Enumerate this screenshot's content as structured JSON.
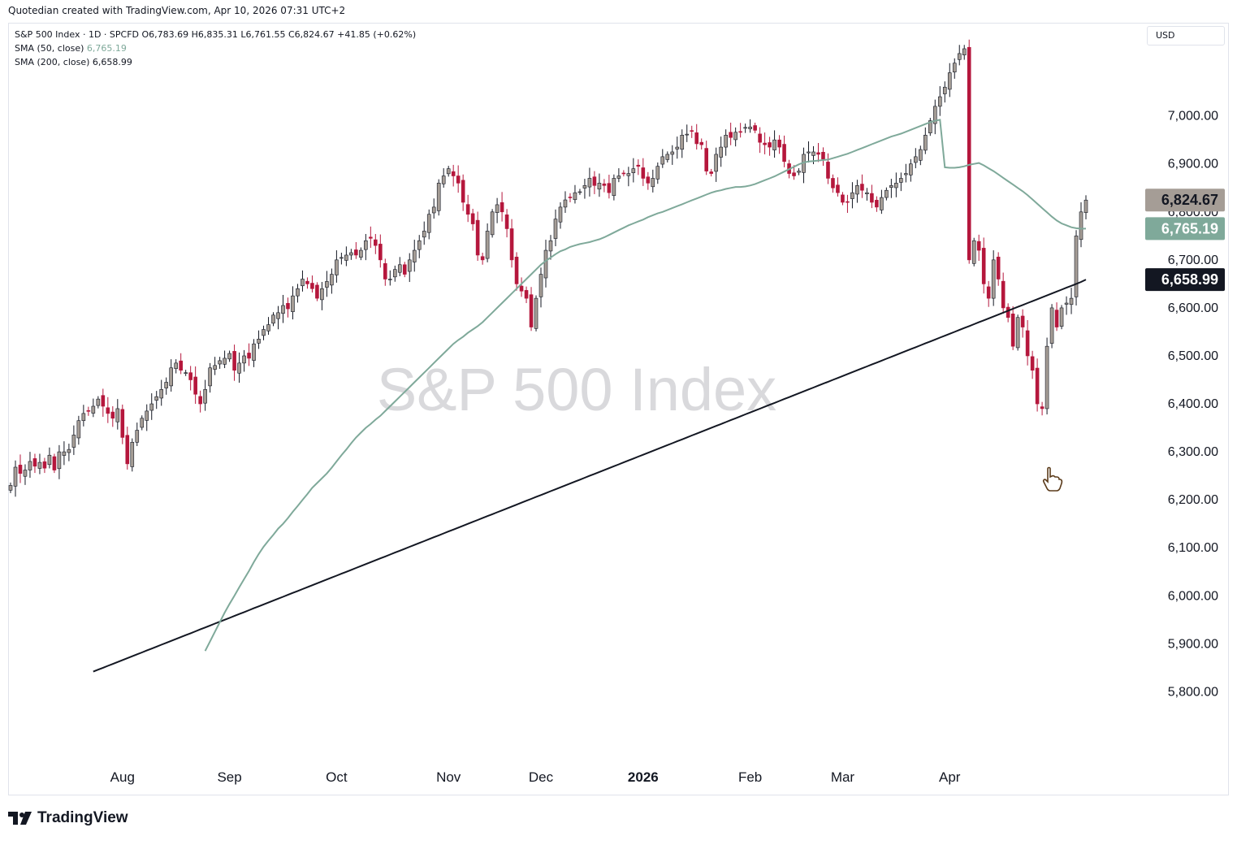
{
  "header": {
    "title": "Quotedian created with TradingView.com, Apr 10, 2026 07:31 UTC+2"
  },
  "legend": {
    "main": "S&P 500 Index · 1D · SPCFD  O6,783.69  H6,835.31  L6,761.55  C6,824.67  +41.85 (+0.62%)",
    "sma50_label": "SMA (50, close)",
    "sma50_value": "6,765.19",
    "sma200_label": "SMA (200, close)",
    "sma200_value": "6,658.99"
  },
  "currency": "USD",
  "footer": {
    "brand": "TradingView"
  },
  "colors": {
    "up": "#a59d96",
    "down": "#b5173c",
    "sma50": "#7fa99a",
    "sma200": "#131722",
    "badge_last": "#a59d96",
    "badge_sma50": "#7fa99a",
    "badge_sma200": "#131722"
  },
  "chart_data": {
    "type": "candlestick",
    "watermark": "S&P 500 Index",
    "x_labels": [
      {
        "label": "Aug",
        "index": 23,
        "bold": false
      },
      {
        "label": "Sep",
        "index": 45,
        "bold": false
      },
      {
        "label": "Oct",
        "index": 67,
        "bold": false
      },
      {
        "label": "Nov",
        "index": 90,
        "bold": false
      },
      {
        "label": "Dec",
        "index": 109,
        "bold": false
      },
      {
        "label": "2026",
        "index": 130,
        "bold": true
      },
      {
        "label": "Feb",
        "index": 152,
        "bold": false
      },
      {
        "label": "Mar",
        "index": 171,
        "bold": false
      },
      {
        "label": "Apr",
        "index": 193,
        "bold": false
      }
    ],
    "y_ticks": [
      5800,
      5900,
      6000,
      6100,
      6200,
      6300,
      6400,
      6500,
      6600,
      6700,
      6800,
      6900,
      7000
    ],
    "y_tick_labels": [
      "5,800.00",
      "5,900.00",
      "6,000.00",
      "6,100.00",
      "6,200.00",
      "6,300.00",
      "6,400.00",
      "6,500.00",
      "6,600.00",
      "6,700.00",
      "6,800.00",
      "6,900.00",
      "7,000.00"
    ],
    "ylim": [
      5650,
      7140
    ],
    "closes": [
      6230,
      6268,
      6255,
      6262,
      6280,
      6270,
      6278,
      6266,
      6293,
      6262,
      6300,
      6300,
      6305,
      6335,
      6365,
      6380,
      6385,
      6395,
      6410,
      6395,
      6380,
      6370,
      6390,
      6330,
      6275,
      6320,
      6345,
      6370,
      6385,
      6400,
      6415,
      6430,
      6445,
      6475,
      6485,
      6470,
      6465,
      6450,
      6420,
      6400,
      6430,
      6475,
      6480,
      6490,
      6495,
      6505,
      6470,
      6485,
      6500,
      6495,
      6525,
      6535,
      6555,
      6565,
      6585,
      6590,
      6605,
      6598,
      6625,
      6640,
      6660,
      6650,
      6640,
      6620,
      6640,
      6655,
      6670,
      6700,
      6705,
      6710,
      6715,
      6710,
      6720,
      6740,
      6745,
      6730,
      6700,
      6660,
      6660,
      6680,
      6690,
      6670,
      6700,
      6720,
      6740,
      6760,
      6795,
      6810,
      6860,
      6875,
      6890,
      6875,
      6860,
      6820,
      6795,
      6775,
      6710,
      6700,
      6760,
      6800,
      6815,
      6800,
      6765,
      6700,
      6650,
      6635,
      6620,
      6560,
      6620,
      6670,
      6720,
      6740,
      6785,
      6810,
      6825,
      6830,
      6840,
      6842,
      6855,
      6870,
      6855,
      6860,
      6855,
      6840,
      6870,
      6875,
      6880,
      6880,
      6890,
      6895,
      6870,
      6860,
      6870,
      6895,
      6915,
      6920,
      6925,
      6935,
      6960,
      6962,
      6968,
      6942,
      6940,
      6885,
      6880,
      6920,
      6935,
      6960,
      6955,
      6966,
      6967,
      6976,
      6977,
      6970,
      6945,
      6940,
      6935,
      6950,
      6935,
      6905,
      6880,
      6875,
      6885,
      6920,
      6925,
      6925,
      6920,
      6910,
      6870,
      6850,
      6840,
      6820,
      6820,
      6840,
      6855,
      6845,
      6840,
      6820,
      6810,
      6830,
      6845,
      6855,
      6860,
      6870,
      6880,
      6900,
      6915,
      6930,
      6960,
      6990,
      7020,
      7040,
      7060,
      7090,
      7110,
      7130,
      7140,
      6700,
      6740,
      6720,
      6650,
      6620,
      6700,
      6660,
      6600,
      6580,
      6520,
      6580,
      6560,
      6500,
      6470,
      6400,
      6390,
      6520,
      6600,
      6560,
      6600,
      6610,
      6620,
      6750,
      6800,
      6824.67
    ],
    "sma50": [
      5885,
      5905,
      5925,
      5945,
      5965,
      5983,
      6000,
      6018,
      6035,
      6052,
      6070,
      6087,
      6102,
      6115,
      6127,
      6140,
      6150,
      6162,
      6175,
      6187,
      6200,
      6212,
      6225,
      6235,
      6245,
      6255,
      6267,
      6280,
      6293,
      6305,
      6318,
      6330,
      6340,
      6350,
      6358,
      6367,
      6375,
      6385,
      6395,
      6405,
      6415,
      6425,
      6435,
      6445,
      6455,
      6465,
      6475,
      6485,
      6495,
      6505,
      6515,
      6525,
      6533,
      6540,
      6548,
      6555,
      6562,
      6570,
      6580,
      6590,
      6600,
      6610,
      6620,
      6630,
      6640,
      6650,
      6660,
      6670,
      6680,
      6690,
      6698,
      6705,
      6712,
      6718,
      6722,
      6727,
      6730,
      6733,
      6735,
      6737,
      6740,
      6743,
      6747,
      6752,
      6757,
      6762,
      6767,
      6772,
      6776,
      6780,
      6784,
      6789,
      6793,
      6797,
      6800,
      6804,
      6808,
      6812,
      6816,
      6820,
      6824,
      6828,
      6832,
      6836,
      6840,
      6843,
      6845,
      6848,
      6850,
      6852,
      6852,
      6853,
      6855,
      6858,
      6862,
      6866,
      6870,
      6874,
      6879,
      6884,
      6889,
      6894,
      6899,
      6903,
      6905,
      6906,
      6907,
      6908,
      6909,
      6912,
      6915,
      6918,
      6921,
      6925,
      6929,
      6933,
      6937,
      6941,
      6945,
      6949,
      6953,
      6957,
      6960,
      6963,
      6967,
      6971,
      6975,
      6979,
      6983,
      6987,
      6990,
      6992,
      6893,
      6892,
      6892,
      6893,
      6895,
      6898,
      6900,
      6902,
      6897,
      6891,
      6885,
      6878,
      6871,
      6864,
      6857,
      6850,
      6843,
      6835,
      6826,
      6817,
      6808,
      6799,
      6790,
      6782,
      6776,
      6772,
      6768,
      6766,
      6765,
      6765.19
    ],
    "sma200": [
      5842,
      5846,
      5850,
      5854,
      5858,
      5862,
      5866,
      5870,
      5874,
      5878,
      5882,
      5886,
      5890,
      5894,
      5898,
      5902,
      5906,
      5910,
      5914,
      5918,
      5922,
      5926,
      5930,
      5934,
      5938,
      5942,
      5946,
      5950,
      5954,
      5958,
      5962,
      5966,
      5970,
      5974,
      5978,
      5982,
      5986,
      5990,
      5994,
      5998,
      6002,
      6006,
      6010,
      6014,
      6018,
      6022,
      6026,
      6030,
      6034,
      6038,
      6042,
      6046,
      6050,
      6054,
      6058,
      6062,
      6066,
      6070,
      6074,
      6078,
      6082,
      6086,
      6090,
      6094,
      6098,
      6102,
      6106,
      6110,
      6114,
      6118,
      6122,
      6126,
      6130,
      6134,
      6138,
      6142,
      6146,
      6150,
      6154,
      6158,
      6162,
      6166,
      6170,
      6174,
      6178,
      6182,
      6186,
      6190,
      6194,
      6198,
      6202,
      6206,
      6210,
      6214,
      6218,
      6222,
      6226,
      6230,
      6234,
      6238,
      6242,
      6246,
      6250,
      6254,
      6258,
      6262,
      6266,
      6270,
      6274,
      6278,
      6282,
      6286,
      6290,
      6294,
      6298,
      6302,
      6306,
      6310,
      6314,
      6318,
      6322,
      6326,
      6330,
      6334,
      6338,
      6342,
      6346,
      6350,
      6354,
      6358,
      6362,
      6366,
      6370,
      6374,
      6378,
      6382,
      6386,
      6390,
      6394,
      6398,
      6402,
      6406,
      6410,
      6414,
      6418,
      6422,
      6426,
      6430,
      6434,
      6438,
      6442,
      6446,
      6450,
      6454,
      6458,
      6462,
      6466,
      6470,
      6474,
      6478,
      6482,
      6486,
      6490,
      6494,
      6498,
      6502,
      6506,
      6510,
      6514,
      6518,
      6522,
      6526,
      6530,
      6534,
      6538,
      6542,
      6546,
      6550,
      6554,
      6558,
      6562,
      6566,
      6570,
      6574,
      6578,
      6582,
      6586,
      6590,
      6594,
      6598,
      6602,
      6606,
      6610,
      6614,
      6618,
      6622,
      6626,
      6630,
      6634,
      6638,
      6642,
      6646,
      6650,
      6654,
      6658.99
    ],
    "last_price_badge": "6,824.67",
    "sma50_badge": "6,765.19",
    "sma200_badge": "6,658.99"
  }
}
